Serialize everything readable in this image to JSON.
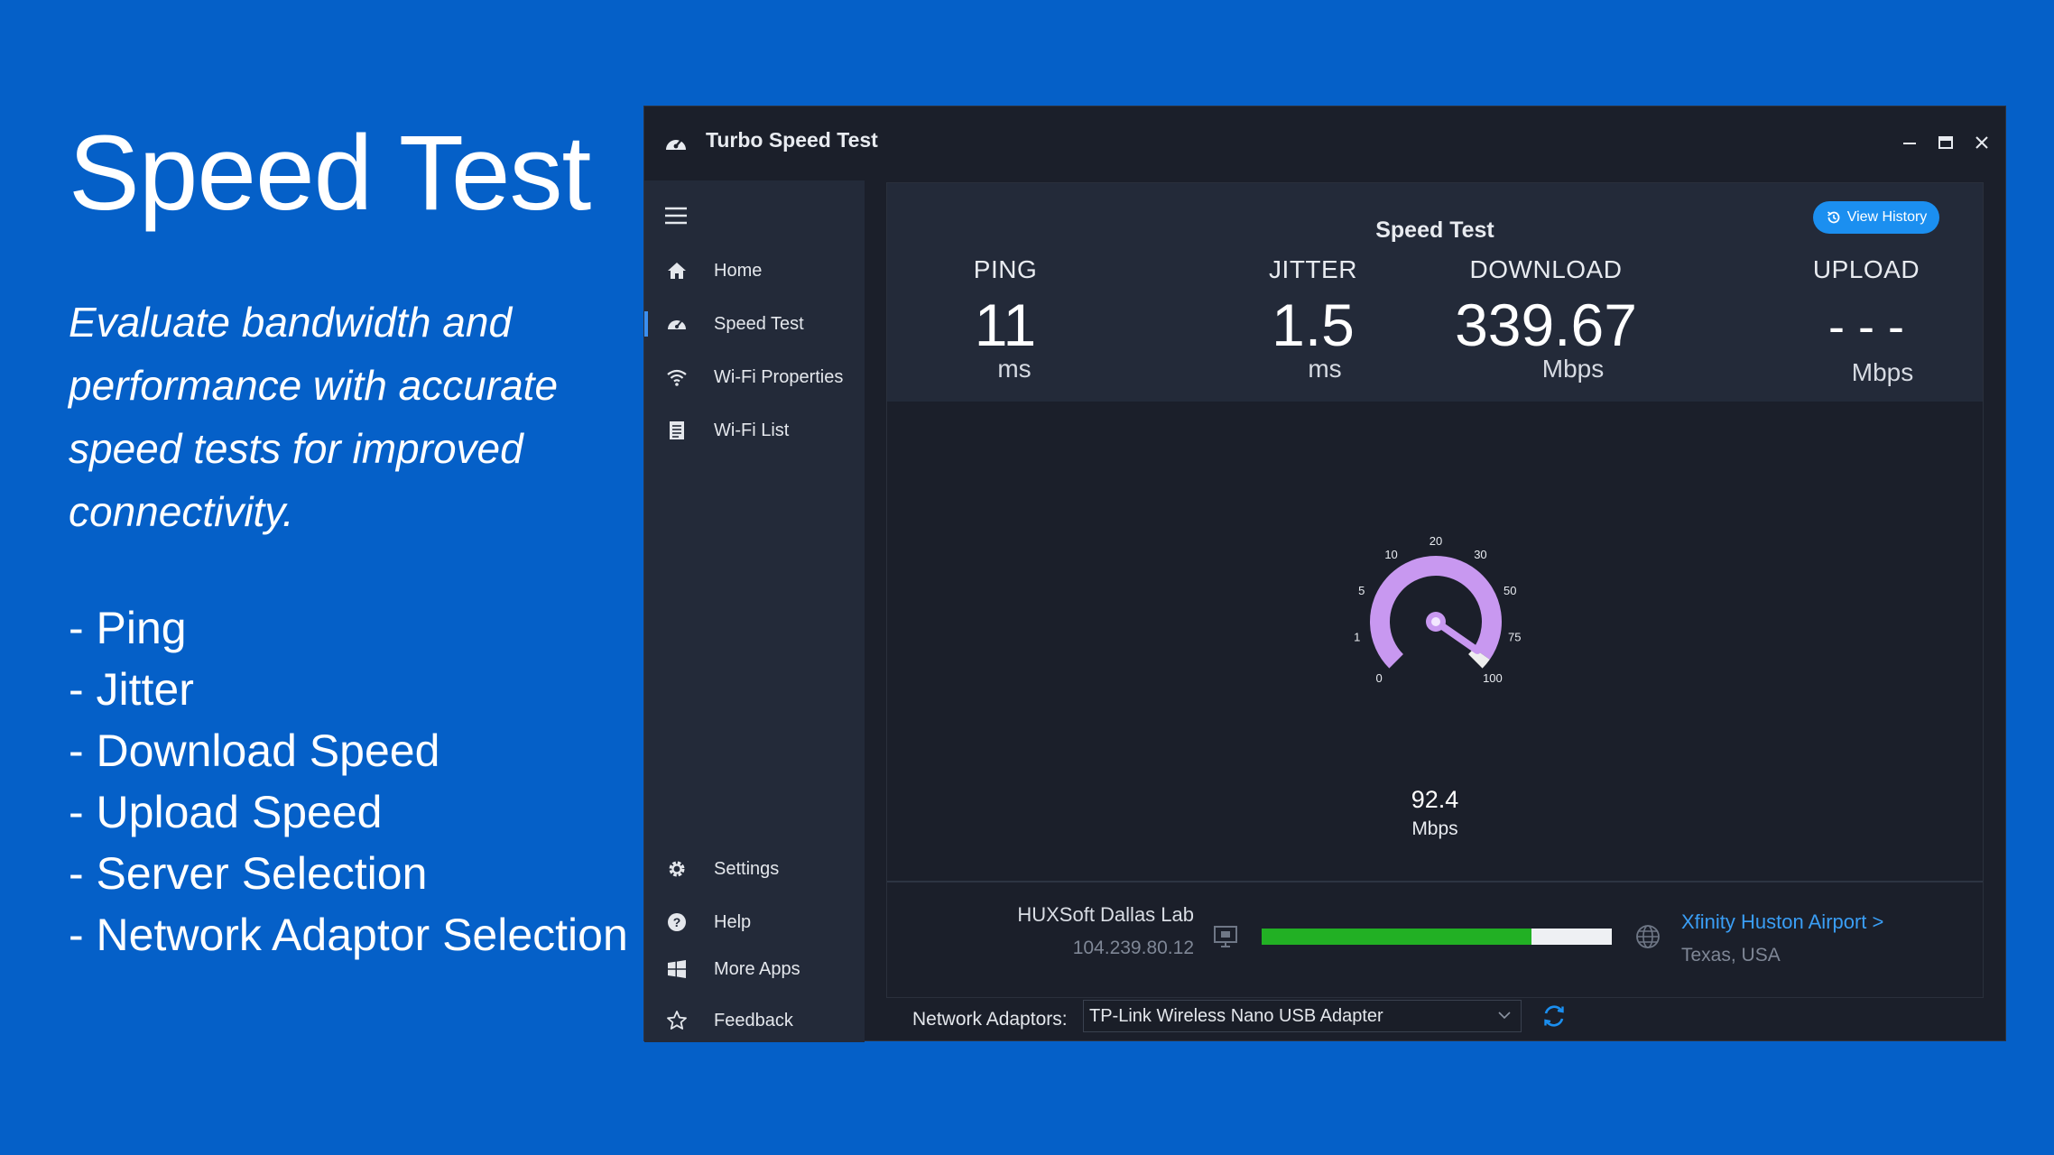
{
  "promo": {
    "title": "Speed Test",
    "description": "Evaluate bandwidth and performance with accurate speed tests for improved connectivity.",
    "features": [
      "- Ping",
      "- Jitter",
      "- Download Speed",
      "- Upload Speed",
      "- Server Selection",
      "- Network Adaptor Selection"
    ]
  },
  "window": {
    "title": "Turbo Speed Test",
    "icon": "speedometer-icon",
    "controls": [
      "minimize-icon",
      "maximize-icon",
      "close-icon"
    ]
  },
  "sidebar": {
    "top_items": [
      {
        "label": "Home",
        "icon": "home-icon"
      },
      {
        "label": "Speed Test",
        "icon": "speedometer-icon",
        "active": true
      },
      {
        "label": "Wi-Fi Properties",
        "icon": "wifi-icon"
      },
      {
        "label": "Wi-Fi List",
        "icon": "list-icon"
      }
    ],
    "bottom_items": [
      {
        "label": "Settings",
        "icon": "gear-icon"
      },
      {
        "label": "Help",
        "icon": "help-icon"
      },
      {
        "label": "More Apps",
        "icon": "windows-icon"
      },
      {
        "label": "Feedback",
        "icon": "star-icon"
      }
    ]
  },
  "main": {
    "title": "Speed Test",
    "history_button": "View History",
    "stats": {
      "ping": {
        "label": "PING",
        "value": "11",
        "unit": "ms"
      },
      "jitter": {
        "label": "JITTER",
        "value": "1.5",
        "unit": "ms"
      },
      "download": {
        "label": "DOWNLOAD",
        "value": "339.67",
        "unit": "Mbps"
      },
      "upload": {
        "label": "UPLOAD",
        "value": "- - -",
        "unit": "Mbps"
      }
    },
    "gauge": {
      "value": "92.4",
      "unit": "Mbps",
      "ticks": [
        "0",
        "1",
        "5",
        "10",
        "20",
        "30",
        "50",
        "75",
        "100"
      ],
      "accent": "#c898f0"
    },
    "server": {
      "name": "HUXSoft Dallas Lab",
      "ip": "104.239.80.12",
      "progress_fraction": 0.77,
      "isp": "Xfinity Huston Airport >",
      "location": "Texas, USA"
    }
  },
  "footer": {
    "adaptor_label": "Network Adaptors:",
    "adaptor_value": "TP-Link Wireless Nano USB Adapter"
  },
  "colors": {
    "background": "#0560c8",
    "window": "#1b1f2a",
    "panel": "#232a39",
    "accent_blue": "#1b8ff0",
    "progress_green": "#22b024"
  }
}
